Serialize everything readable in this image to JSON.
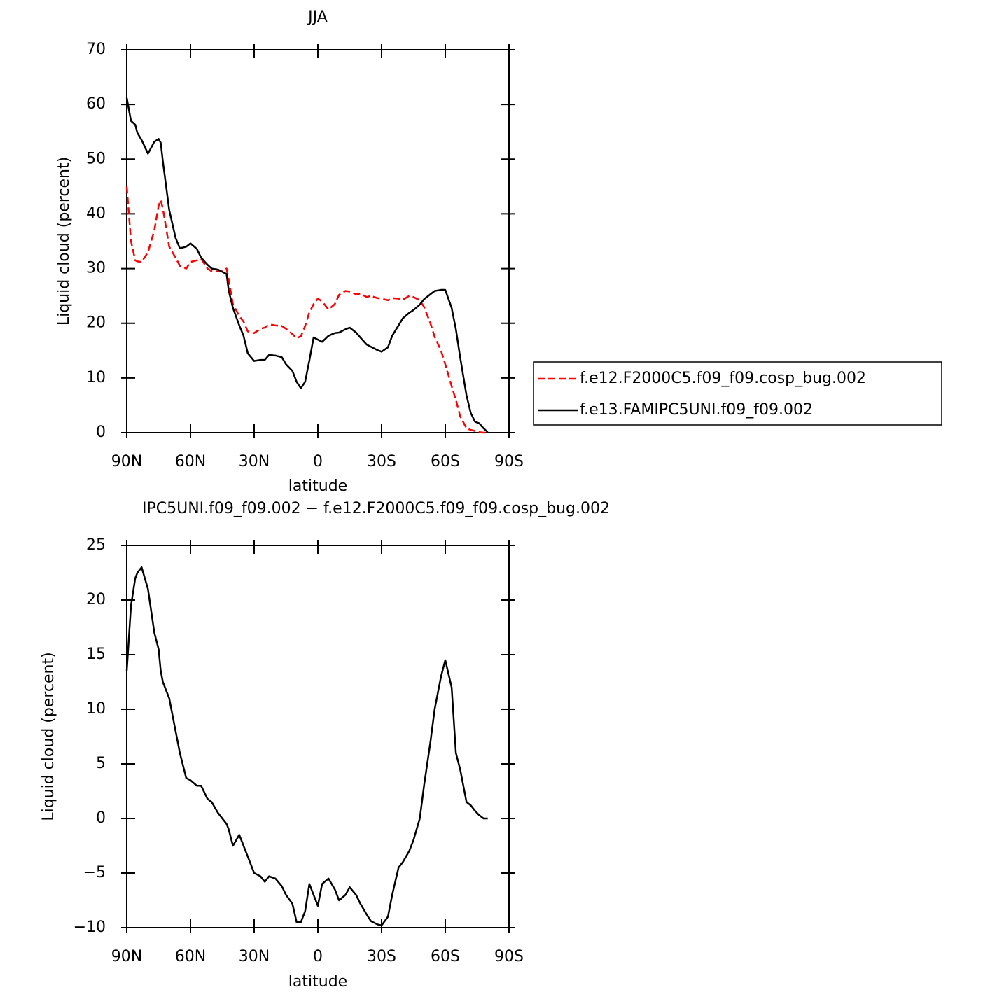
{
  "chart_data": [
    {
      "type": "line",
      "title": "JJA",
      "xlabel": "latitude",
      "ylabel": "Liquid cloud (percent)",
      "x": [
        90,
        88,
        86,
        85,
        83,
        80,
        77,
        75,
        74,
        73,
        70,
        67,
        65,
        62,
        60,
        57,
        55,
        52,
        50,
        47,
        45,
        43,
        42,
        40,
        37,
        35,
        33,
        30,
        27,
        25,
        23,
        20,
        17,
        15,
        12,
        10,
        8,
        6,
        4,
        2,
        0,
        -2,
        -5,
        -8,
        -10,
        -13,
        -15,
        -18,
        -20,
        -23,
        -25,
        -28,
        -30,
        -33,
        -35,
        -38,
        -40,
        -43,
        -45,
        -48,
        -50,
        -53,
        -55,
        -58,
        -60,
        -63,
        -65,
        -67,
        -70,
        -72,
        -74,
        -76,
        -78,
        -80
      ],
      "series": [
        {
          "name": "f.e12.F2000C5.f09_f09.cosp_bug.002",
          "color": "#ff0000",
          "line_style": "dashed",
          "values": [
            45,
            35,
            31.5,
            31.3,
            31.2,
            33,
            37,
            41.5,
            42.5,
            41,
            34,
            32,
            30.5,
            30,
            31.2,
            31.5,
            31.8,
            30,
            29.5,
            29.5,
            29.5,
            30,
            28,
            23.5,
            21.3,
            20.3,
            18.5,
            18.2,
            19,
            19.2,
            19.8,
            19.6,
            19.5,
            19,
            18,
            17.3,
            17.6,
            19.5,
            22,
            23.5,
            24.5,
            24,
            22.5,
            23.5,
            25.2,
            25.9,
            25.8,
            25.3,
            25.4,
            24.8,
            25,
            24.6,
            24.5,
            24.2,
            24.6,
            24.5,
            24.3,
            25,
            24.8,
            24.2,
            23,
            20,
            17.5,
            15,
            12.5,
            8.5,
            6,
            3,
            0.8,
            0.5,
            0.3,
            0.1,
            0,
            0
          ]
        },
        {
          "name": "f.e13.FAMIPC5UNI.f09_f09.002",
          "color": "#000000",
          "line_style": "solid",
          "values": [
            61.2,
            57,
            56.3,
            54.8,
            53.5,
            51,
            53.2,
            53.7,
            53,
            49.6,
            40.7,
            35.6,
            33.7,
            34,
            34.6,
            33.6,
            32,
            30.7,
            30,
            29.8,
            29.4,
            29,
            26,
            22.8,
            19.6,
            17.7,
            14.5,
            13.1,
            13.3,
            13.3,
            14.2,
            14.1,
            13.8,
            12.5,
            11.3,
            9.3,
            8.1,
            9.3,
            13.2,
            17.4,
            17,
            16.6,
            17.7,
            18.2,
            18.3,
            18.9,
            19.2,
            18.3,
            17.4,
            16.1,
            15.7,
            15.1,
            14.8,
            15.6,
            17.7,
            19.6,
            20.9,
            21.9,
            22.4,
            23.4,
            24.4,
            25.3,
            25.9,
            26.1,
            26.1,
            22.8,
            18.9,
            13.8,
            6.8,
            3.6,
            2,
            1.7,
            0.8,
            0.1
          ]
        }
      ],
      "xlim": [
        90,
        -90
      ],
      "xticks": [
        {
          "value": 90,
          "label": "90N"
        },
        {
          "value": 60,
          "label": "60N"
        },
        {
          "value": 30,
          "label": "30N"
        },
        0,
        {
          "value": -30,
          "label": "30S"
        },
        {
          "value": -60,
          "label": "60S"
        },
        {
          "value": -90,
          "label": "90S"
        }
      ],
      "ylim": [
        0,
        70
      ],
      "yticks": [
        0,
        10,
        20,
        30,
        40,
        50,
        60,
        70
      ],
      "legend": "right"
    },
    {
      "type": "line",
      "title": "IPC5UNI.f09_f09.002 − f.e12.F2000C5.f09_f09.cosp_bug.002",
      "xlabel": "latitude",
      "ylabel": "Liquid cloud (percent)",
      "x": [
        90,
        88,
        86,
        85,
        83,
        80,
        77,
        75,
        74,
        73,
        70,
        67,
        65,
        62,
        60,
        57,
        55,
        52,
        50,
        47,
        45,
        43,
        42,
        40,
        37,
        35,
        33,
        30,
        27,
        25,
        23,
        20,
        17,
        15,
        12,
        10,
        8,
        6,
        4,
        2,
        0,
        -2,
        -5,
        -8,
        -10,
        -13,
        -15,
        -18,
        -20,
        -23,
        -25,
        -28,
        -30,
        -33,
        -35,
        -38,
        -40,
        -43,
        -45,
        -48,
        -50,
        -53,
        -55,
        -58,
        -60,
        -63,
        -65,
        -67,
        -70,
        -72,
        -74,
        -76,
        -78,
        -80
      ],
      "series": [
        {
          "color": "#000000",
          "line_style": "solid",
          "values": [
            13.5,
            19.5,
            22,
            22.5,
            23,
            21,
            17,
            15.5,
            13.5,
            12.5,
            11,
            8,
            6,
            3.7,
            3.5,
            3,
            3,
            1.8,
            1.5,
            0.5,
            0,
            -0.5,
            -1,
            -2.5,
            -1.5,
            -2.5,
            -3.5,
            -5,
            -5.3,
            -5.8,
            -5.3,
            -5.5,
            -6.2,
            -7,
            -7.8,
            -9.5,
            -9.5,
            -8.5,
            -6,
            -7,
            -8,
            -6,
            -5.5,
            -6.5,
            -7.5,
            -7,
            -6.3,
            -7,
            -7.8,
            -8.8,
            -9.4,
            -9.7,
            -9.8,
            -9,
            -7,
            -4.5,
            -4,
            -3,
            -2,
            0,
            3,
            7,
            10,
            13,
            14.5,
            12,
            6,
            4.5,
            1.5,
            1.2,
            0.7,
            0.3,
            0,
            0
          ]
        }
      ],
      "xlim": [
        90,
        -90
      ],
      "xticks": [
        {
          "value": 90,
          "label": "90N"
        },
        {
          "value": 60,
          "label": "60N"
        },
        {
          "value": 30,
          "label": "30N"
        },
        0,
        {
          "value": -30,
          "label": "30S"
        },
        {
          "value": -60,
          "label": "60S"
        },
        {
          "value": -90,
          "label": "90S"
        }
      ],
      "ylim": [
        -10,
        25
      ],
      "yticks": [
        {
          "value": -10,
          "label": "−10"
        },
        {
          "value": -5,
          "label": "−5"
        },
        0,
        5,
        10,
        15,
        20,
        25
      ]
    }
  ]
}
